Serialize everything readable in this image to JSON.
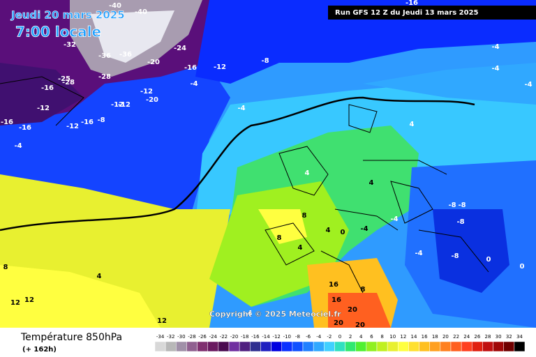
{
  "header": {
    "valid": "Jeudi 20 mars 2025",
    "hour": "7:00 locale",
    "run": "Run GFS 12 Z du Jeudi 13 mars 2025"
  },
  "copyright": "Copyright © 2025 Meteociel.fr",
  "footer": {
    "title": "Température 850hPa",
    "subtitle": "(+ 162h)"
  },
  "legend": {
    "labels": [
      -34,
      -32,
      -30,
      -28,
      -26,
      -24,
      -22,
      -20,
      -18,
      -16,
      -14,
      -12,
      -10,
      -8,
      -6,
      -4,
      -2,
      0,
      2,
      4,
      6,
      8,
      10,
      12,
      14,
      16,
      18,
      20,
      22,
      24,
      26,
      28,
      30,
      32,
      34
    ],
    "colors": [
      "#d8d8d8",
      "#b8b8b8",
      "#a090a8",
      "#906090",
      "#803070",
      "#6a1a60",
      "#4a0a50",
      "#7030a0",
      "#502080",
      "#303090",
      "#2020c0",
      "#0000e0",
      "#0a30ff",
      "#1050ff",
      "#2080ff",
      "#30a8ff",
      "#40d0ff",
      "#30e0c0",
      "#30e870",
      "#50f030",
      "#90f020",
      "#c0f020",
      "#e8f030",
      "#ffff40",
      "#ffe030",
      "#ffc020",
      "#ffa020",
      "#ff8020",
      "#ff6020",
      "#ff4020",
      "#e02010",
      "#c01010",
      "#a00808",
      "#700000",
      "#000000"
    ]
  },
  "map_labels": [
    "-40",
    "-40",
    "-16",
    "-32",
    "-24",
    "-36",
    "-36",
    "-20",
    "-16",
    "-12",
    "-8",
    "-28",
    "-25",
    "-28",
    "-16",
    "-12",
    "-12",
    "-12",
    "-12",
    "-20",
    "-12",
    "-8",
    "-16",
    "-16",
    "-16",
    "-4",
    "-4",
    "-4",
    "-4",
    "-4",
    "-4",
    "4",
    "4",
    "4",
    "4",
    "0",
    "-4",
    "-4",
    "-8",
    "-8",
    "-8",
    "-8",
    "-4",
    "0",
    "0",
    "8",
    "8",
    "8",
    "4",
    "12",
    "12",
    "12",
    "8",
    "16",
    "16",
    "20",
    "20",
    "20",
    "4",
    "4"
  ]
}
